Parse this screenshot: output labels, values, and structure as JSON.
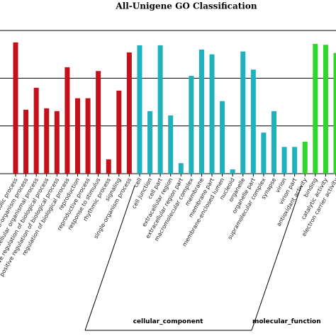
{
  "chart_data": {
    "type": "bar",
    "title": "All-Unigene GO Classification",
    "ylim": [
      0,
      3
    ],
    "yticks": [
      0,
      1,
      2,
      3
    ],
    "grid": true,
    "groups": [
      {
        "color": "#c4101a",
        "categories": [
          "metabolic process",
          "multi-organism process",
          "multicellular organismal process",
          "negative regulation of biological process",
          "positive regulation of biological process",
          "regulation of biological process",
          "reproduction",
          "reproductive process",
          "response to stimulus",
          "rhythmic process",
          "signaling",
          "single-organism process"
        ],
        "values": [
          2.75,
          1.34,
          1.8,
          1.37,
          1.31,
          2.23,
          1.58,
          1.58,
          2.15,
          0.3,
          1.74,
          2.54
        ]
      },
      {
        "name": "cellular_component",
        "color": "#1fb2bd",
        "categories": [
          "cell",
          "cell junction",
          "cell part",
          "extracellular region",
          "extracellular region part",
          "macromolecular complex",
          "membrane",
          "membrane part",
          "membrane-enclosed lumen",
          "nucleoid",
          "organelle",
          "organelle part",
          "supramolecular complex",
          "synapse",
          "virion",
          "virion part"
        ],
        "values": [
          2.69,
          1.31,
          2.69,
          1.22,
          0.22,
          2.05,
          2.6,
          2.5,
          1.52,
          0.09,
          2.56,
          2.18,
          0.86,
          1.31,
          0.56,
          0.56
        ]
      },
      {
        "name": "molecular_function",
        "color": "#2fd62c",
        "categories": [
          "antioxidant activity",
          "binding",
          "catalytic activity",
          "electron carrier activity"
        ],
        "values": [
          0.67,
          2.72,
          2.7,
          2.53
        ]
      }
    ]
  }
}
